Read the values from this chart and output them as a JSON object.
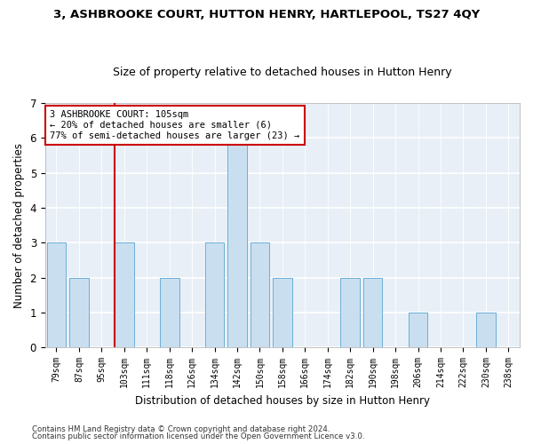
{
  "title1": "3, ASHBROOKE COURT, HUTTON HENRY, HARTLEPOOL, TS27 4QY",
  "title2": "Size of property relative to detached houses in Hutton Henry",
  "xlabel": "Distribution of detached houses by size in Hutton Henry",
  "ylabel": "Number of detached properties",
  "categories": [
    "79sqm",
    "87sqm",
    "95sqm",
    "103sqm",
    "111sqm",
    "118sqm",
    "126sqm",
    "134sqm",
    "142sqm",
    "150sqm",
    "158sqm",
    "166sqm",
    "174sqm",
    "182sqm",
    "190sqm",
    "198sqm",
    "206sqm",
    "214sqm",
    "222sqm",
    "230sqm",
    "238sqm"
  ],
  "values": [
    3,
    2,
    0,
    3,
    0,
    2,
    0,
    3,
    6,
    3,
    2,
    0,
    0,
    2,
    2,
    0,
    1,
    0,
    0,
    1,
    0
  ],
  "bar_color": "#c9dff0",
  "bar_edge_color": "#6aafd6",
  "property_line_index": 3,
  "property_line_color": "#cc0000",
  "annotation_line1": "3 ASHBROOKE COURT: 105sqm",
  "annotation_line2": "← 20% of detached houses are smaller (6)",
  "annotation_line3": "77% of semi-detached houses are larger (23) →",
  "annotation_box_color": "white",
  "annotation_box_edge_color": "#cc0000",
  "ylim": [
    0,
    7
  ],
  "yticks": [
    0,
    1,
    2,
    3,
    4,
    5,
    6,
    7
  ],
  "footer1": "Contains HM Land Registry data © Crown copyright and database right 2024.",
  "footer2": "Contains public sector information licensed under the Open Government Licence v3.0.",
  "plot_bg_color": "#e8eff7"
}
